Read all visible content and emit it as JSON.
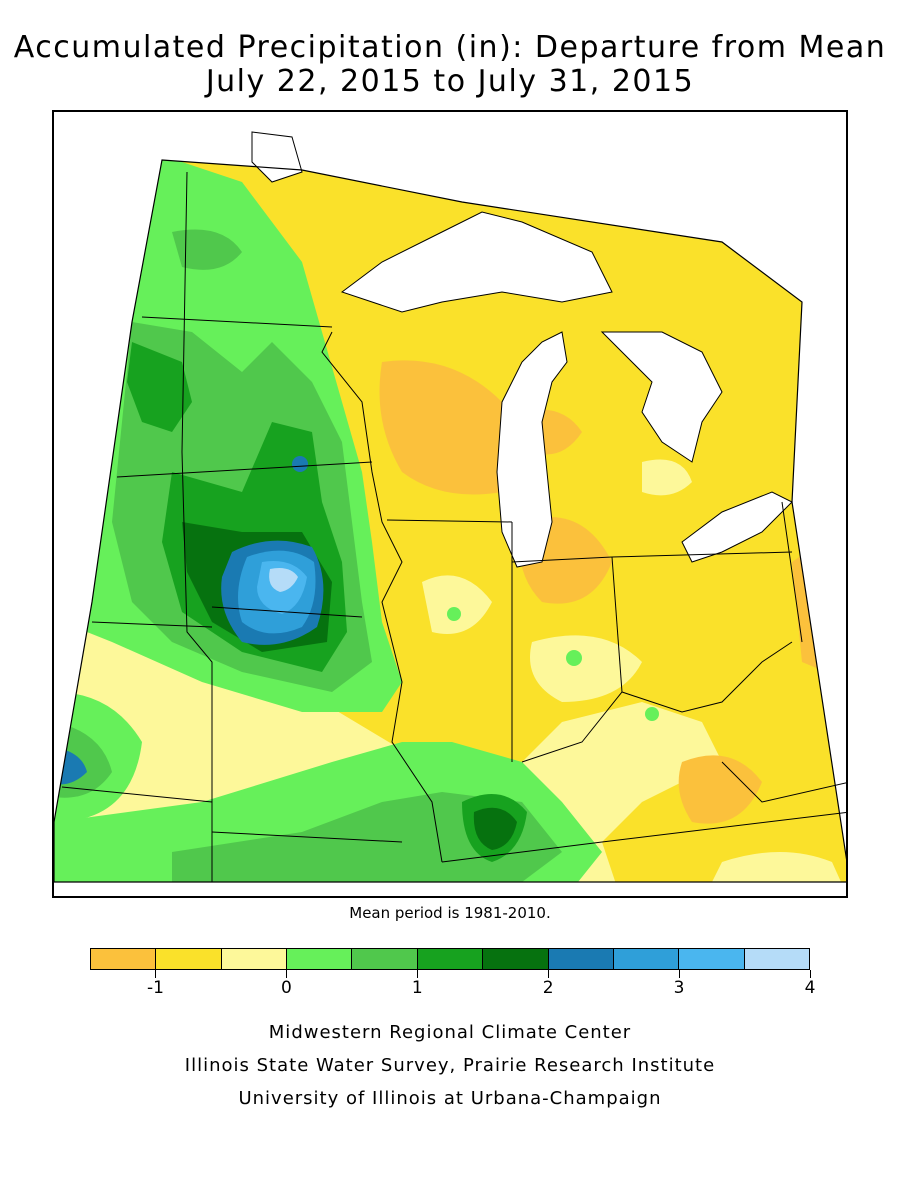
{
  "title_line1": "Accumulated Precipitation (in): Departure from Mean",
  "title_line2": "July 22, 2015 to July 31, 2015",
  "footnote": "Mean period is 1981-2010.",
  "colorbar": {
    "bins": [
      {
        "min": -1.5,
        "max": -1.0,
        "color": "#fbc13c"
      },
      {
        "min": -1.0,
        "max": -0.5,
        "color": "#fae12a"
      },
      {
        "min": -0.5,
        "max": 0.0,
        "color": "#fdf89a"
      },
      {
        "min": 0.0,
        "max": 0.5,
        "color": "#66f05a"
      },
      {
        "min": 0.5,
        "max": 1.0,
        "color": "#50c84c"
      },
      {
        "min": 1.0,
        "max": 1.5,
        "color": "#17a21f"
      },
      {
        "min": 1.5,
        "max": 2.0,
        "color": "#06720f"
      },
      {
        "min": 2.0,
        "max": 2.5,
        "color": "#1a7ab2"
      },
      {
        "min": 2.5,
        "max": 3.0,
        "color": "#2f9fd9"
      },
      {
        "min": 3.0,
        "max": 3.5,
        "color": "#4ab6ef"
      },
      {
        "min": 3.5,
        "max": 4.0,
        "color": "#b5dcf8"
      }
    ],
    "ticks": [
      "-1",
      "0",
      "1",
      "2",
      "3",
      "4"
    ]
  },
  "credits": [
    "Midwestern Regional Climate Center",
    "Illinois State Water Survey, Prairie Research Institute",
    "University of Illinois at Urbana-Champaign"
  ]
}
